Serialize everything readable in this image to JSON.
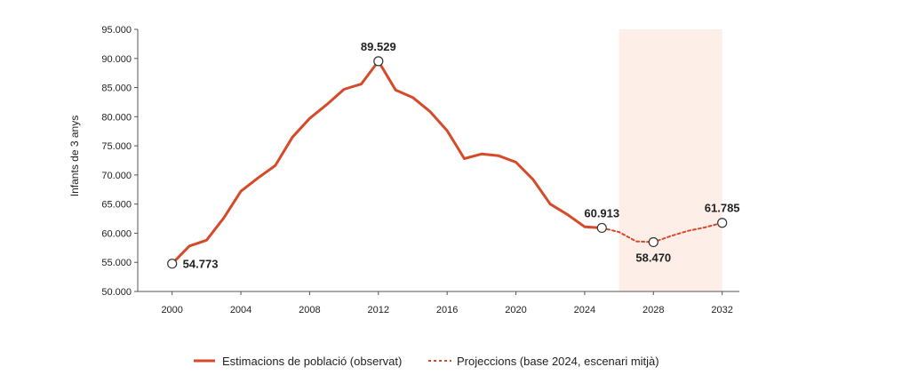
{
  "chart_data": {
    "type": "line",
    "ylabel": "Infants de 3 anys",
    "xlabel": "",
    "title": "",
    "xlim": [
      1998,
      2033
    ],
    "ylim": [
      50000,
      95000
    ],
    "x_ticks": [
      2000,
      2004,
      2008,
      2012,
      2016,
      2020,
      2024,
      2028,
      2032
    ],
    "x_tick_labels": [
      "2000",
      "2004",
      "2008",
      "2012",
      "2016",
      "2020",
      "2024",
      "2028",
      "2032"
    ],
    "y_ticks": [
      50000,
      55000,
      60000,
      65000,
      70000,
      75000,
      80000,
      85000,
      90000,
      95000
    ],
    "y_tick_labels": [
      "50.000",
      "55.000",
      "60.000",
      "65.000",
      "70.000",
      "75.000",
      "80.000",
      "85.000",
      "90.000",
      "95.000"
    ],
    "shaded_region": {
      "x_start": 2026,
      "x_end": 2032,
      "color": "#fdeee8"
    },
    "legend_position": "bottom",
    "series": [
      {
        "name": "Estimacions de població (observat)",
        "style": "solid",
        "color": "#d64a2a",
        "x": [
          2000,
          2001,
          2002,
          2003,
          2004,
          2005,
          2006,
          2007,
          2008,
          2009,
          2010,
          2011,
          2012,
          2013,
          2014,
          2015,
          2016,
          2017,
          2018,
          2019,
          2020,
          2021,
          2022,
          2023,
          2024,
          2025
        ],
        "y": [
          54773,
          57800,
          58800,
          62600,
          67200,
          69500,
          71600,
          76500,
          79700,
          82100,
          84700,
          85600,
          89529,
          84600,
          83300,
          80900,
          77600,
          72800,
          73600,
          73300,
          72200,
          69200,
          65000,
          63200,
          61100,
          60913
        ]
      },
      {
        "name": "Projeccions (base 2024, escenari mitjà)",
        "style": "dashed",
        "color": "#d64a2a",
        "x": [
          2025,
          2026,
          2027,
          2028,
          2029,
          2030,
          2031,
          2032
        ],
        "y": [
          60913,
          60200,
          58600,
          58470,
          59500,
          60400,
          61000,
          61785
        ]
      }
    ],
    "annotations": [
      {
        "x": 2000,
        "y": 54773,
        "label": "54.773",
        "placement": "right"
      },
      {
        "x": 2012,
        "y": 89529,
        "label": "89.529",
        "placement": "above"
      },
      {
        "x": 2025,
        "y": 60913,
        "label": "60.913",
        "placement": "above"
      },
      {
        "x": 2028,
        "y": 58470,
        "label": "58.470",
        "placement": "below"
      },
      {
        "x": 2032,
        "y": 61785,
        "label": "61.785",
        "placement": "above"
      }
    ]
  }
}
